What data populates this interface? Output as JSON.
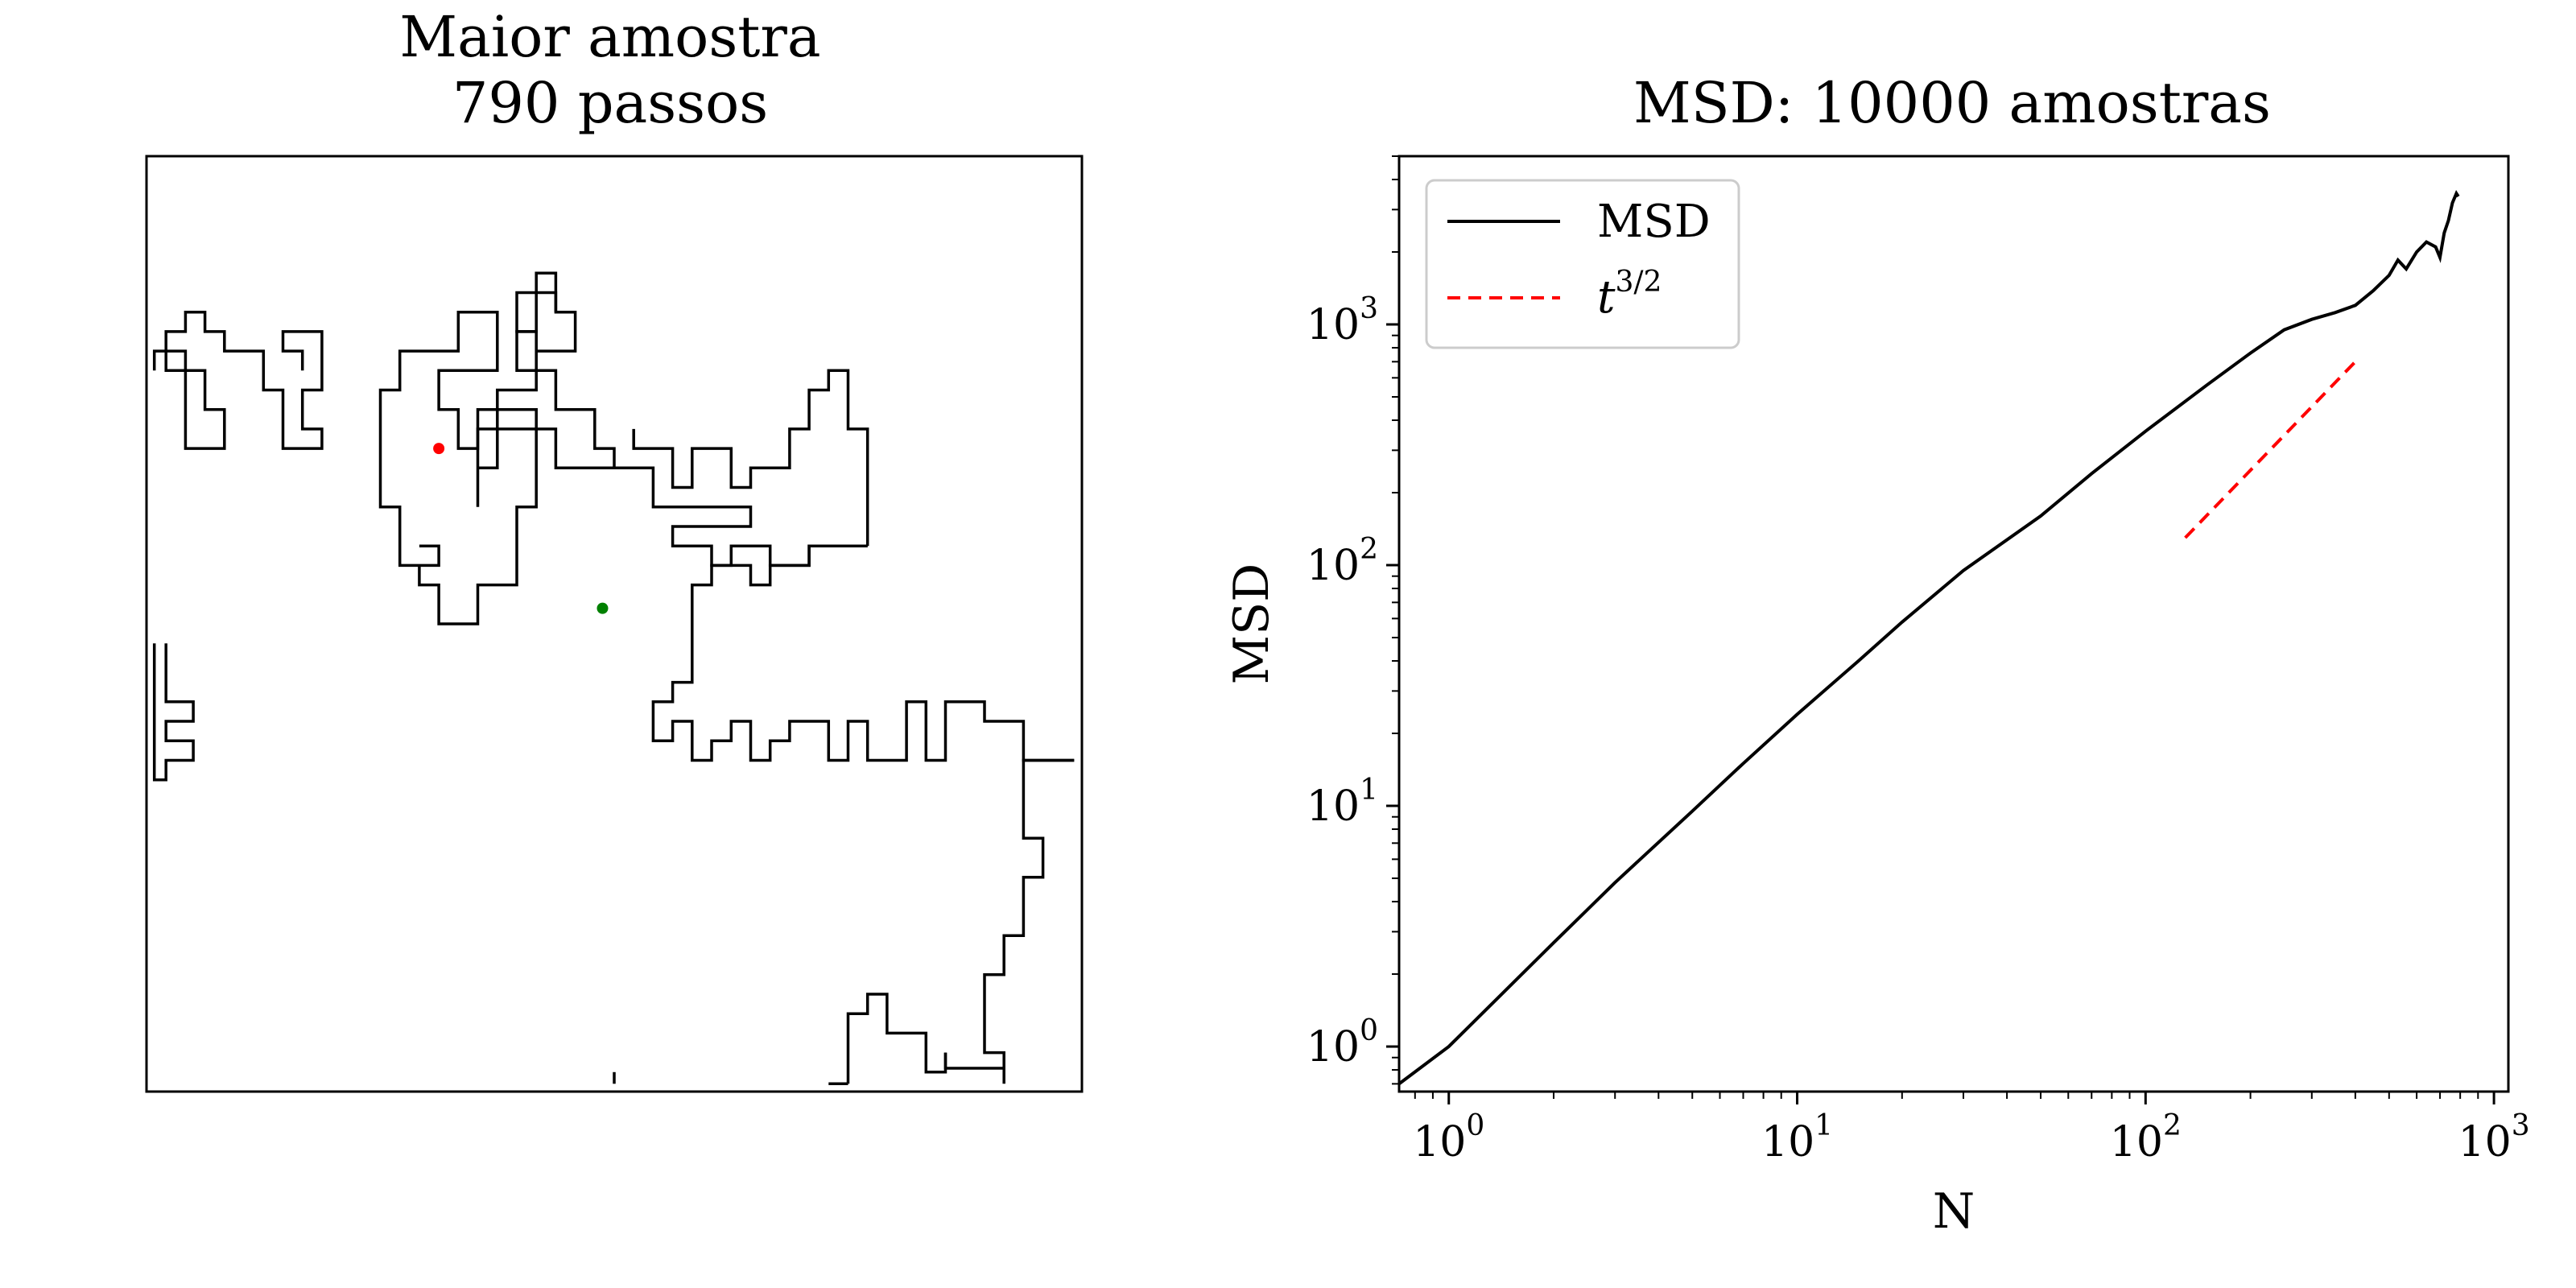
{
  "chart_data": [
    {
      "type": "line",
      "title_line1": "Maior amostra",
      "title_line2": "790 passos",
      "steps": 790,
      "xlim": [
        -12,
        12
      ],
      "ylim": [
        -12,
        12
      ],
      "axes_visible": false,
      "grid": false,
      "series": [
        {
          "color": "#000000",
          "segments": [
            [
              [
                5.5,
                -11.8
              ],
              [
                6,
                -11.8
              ]
            ],
            [
              [
                6,
                -11.8
              ],
              [
                6,
                -10
              ],
              [
                6.5,
                -10
              ],
              [
                6.5,
                -9.5
              ],
              [
                7,
                -9.5
              ],
              [
                7,
                -10.5
              ],
              [
                8,
                -10.5
              ],
              [
                8,
                -11.5
              ],
              [
                8.5,
                -11.5
              ],
              [
                8.5,
                -11
              ]
            ],
            [
              [
                8.5,
                -11
              ],
              [
                8.5,
                -11.4
              ],
              [
                10,
                -11.4
              ],
              [
                10,
                -11.8
              ],
              [
                10,
                -11
              ],
              [
                9.5,
                -11
              ],
              [
                9.5,
                -9
              ],
              [
                10,
                -9
              ],
              [
                10,
                -8
              ],
              [
                10.5,
                -8
              ],
              [
                10.5,
                -6.5
              ],
              [
                11,
                -6.5
              ],
              [
                11,
                -5.5
              ],
              [
                10.5,
                -5.5
              ],
              [
                10.5,
                -3.5
              ],
              [
                11.8,
                -3.5
              ]
            ],
            [
              [
                11.8,
                -3.5
              ],
              [
                10.5,
                -3.5
              ],
              [
                10.5,
                -2.5
              ],
              [
                9.5,
                -2.5
              ],
              [
                9.5,
                -2
              ],
              [
                8.5,
                -2
              ],
              [
                8.5,
                -3.5
              ],
              [
                8,
                -3.5
              ],
              [
                8,
                -2
              ],
              [
                7.5,
                -2
              ],
              [
                7.5,
                -3.5
              ],
              [
                6.5,
                -3.5
              ],
              [
                6.5,
                -2.5
              ],
              [
                6,
                -2.5
              ],
              [
                6,
                -3.5
              ],
              [
                5.5,
                -3.5
              ],
              [
                5.5,
                -2.5
              ],
              [
                4.5,
                -2.5
              ],
              [
                4.5,
                -3
              ],
              [
                4,
                -3
              ],
              [
                4,
                -3.5
              ],
              [
                3.5,
                -3.5
              ],
              [
                3.5,
                -2.5
              ],
              [
                3,
                -2.5
              ],
              [
                3,
                -3
              ],
              [
                2.5,
                -3
              ],
              [
                2.5,
                -3.5
              ],
              [
                2,
                -3.5
              ],
              [
                2,
                -2.5
              ],
              [
                1.5,
                -2.5
              ],
              [
                1.5,
                -3
              ],
              [
                1,
                -3
              ],
              [
                1,
                -2
              ],
              [
                1.5,
                -2
              ],
              [
                1.5,
                -1.5
              ],
              [
                2,
                -1.5
              ],
              [
                2,
                1
              ],
              [
                2.5,
                1
              ],
              [
                2.5,
                1.5
              ],
              [
                3.5,
                1.5
              ],
              [
                3.5,
                1
              ],
              [
                4,
                1
              ],
              [
                4,
                1.5
              ],
              [
                5,
                1.5
              ],
              [
                5,
                2
              ],
              [
                6.5,
                2
              ]
            ],
            [
              [
                6.5,
                2
              ],
              [
                5,
                2
              ],
              [
                5,
                1.5
              ],
              [
                4,
                1.5
              ],
              [
                4,
                2
              ],
              [
                3,
                2
              ],
              [
                3,
                1.5
              ],
              [
                2.5,
                1.5
              ],
              [
                2.5,
                2
              ],
              [
                1.5,
                2
              ],
              [
                1.5,
                2.5
              ],
              [
                3.5,
                2.5
              ],
              [
                3.5,
                3
              ],
              [
                1,
                3
              ],
              [
                1,
                4
              ],
              [
                -1.5,
                4
              ],
              [
                -1.5,
                5
              ],
              [
                -3,
                5
              ],
              [
                -3,
                6
              ],
              [
                -2,
                6
              ],
              [
                -2,
                7
              ],
              [
                -1,
                7
              ],
              [
                -1,
                8
              ],
              [
                -1.5,
                8
              ],
              [
                -1.5,
                8.5
              ],
              [
                -2.5,
                8.5
              ],
              [
                -2.5,
                7.5
              ],
              [
                -2,
                7.5
              ],
              [
                -2,
                6
              ],
              [
                -3,
                6
              ],
              [
                -3,
                4
              ],
              [
                -3.5,
                4
              ],
              [
                -3.5,
                3
              ],
              [
                -3.5,
                5
              ],
              [
                -2,
                5
              ]
            ],
            [
              [
                -5,
                1.5
              ],
              [
                -5,
                1
              ],
              [
                -4.5,
                1
              ],
              [
                -4.5,
                0
              ],
              [
                -3.5,
                0
              ],
              [
                -3.5,
                1
              ],
              [
                -2.5,
                1
              ],
              [
                -2.5,
                3
              ],
              [
                -2,
                3
              ],
              [
                -2,
                5.5
              ],
              [
                -3.5,
                5.5
              ],
              [
                -3.5,
                4.5
              ],
              [
                -4,
                4.5
              ],
              [
                -4,
                5.5
              ],
              [
                -4.5,
                5.5
              ],
              [
                -4.5,
                6.5
              ],
              [
                -3,
                6.5
              ],
              [
                -3,
                8
              ],
              [
                -4,
                8
              ],
              [
                -4,
                7
              ],
              [
                -5.5,
                7
              ],
              [
                -5.5,
                6
              ],
              [
                -6,
                6
              ],
              [
                -6,
                3
              ],
              [
                -5.5,
                3
              ],
              [
                -5.5,
                1.5
              ],
              [
                -4.5,
                1.5
              ],
              [
                -4.5,
                2
              ],
              [
                -5,
                2
              ]
            ],
            [
              [
                -1.5,
                8
              ],
              [
                -1.5,
                9
              ],
              [
                -2,
                9
              ],
              [
                -2,
                7.5
              ],
              [
                -2.5,
                7.5
              ],
              [
                -2.5,
                6.5
              ],
              [
                -1.5,
                6.5
              ],
              [
                -1.5,
                5.5
              ],
              [
                -0.5,
                5.5
              ],
              [
                -0.5,
                4.5
              ],
              [
                0,
                4.5
              ],
              [
                0,
                4
              ]
            ],
            [
              [
                -8,
                6.5
              ],
              [
                -8,
                7
              ],
              [
                -8.5,
                7
              ],
              [
                -8.5,
                7.5
              ],
              [
                -7.5,
                7.5
              ],
              [
                -7.5,
                6
              ],
              [
                -8,
                6
              ],
              [
                -8,
                5
              ],
              [
                -7.5,
                5
              ],
              [
                -7.5,
                4.5
              ],
              [
                -8.5,
                4.5
              ],
              [
                -8.5,
                6
              ],
              [
                -9,
                6
              ],
              [
                -9,
                7
              ],
              [
                -10,
                7
              ],
              [
                -10,
                7.5
              ],
              [
                -10.5,
                7.5
              ],
              [
                -10.5,
                8
              ],
              [
                -11,
                8
              ],
              [
                -11,
                7.5
              ],
              [
                -11.5,
                7.5
              ],
              [
                -11.5,
                6.5
              ],
              [
                -10.5,
                6.5
              ],
              [
                -10.5,
                5.5
              ],
              [
                -10,
                5.5
              ],
              [
                -10,
                4.5
              ],
              [
                -11,
                4.5
              ],
              [
                -11,
                7
              ],
              [
                -11.8,
                7
              ],
              [
                -11.8,
                6.5
              ]
            ],
            [
              [
                -11.8,
                -0.5
              ],
              [
                -11.8,
                -4
              ],
              [
                -11.5,
                -4
              ],
              [
                -11.5,
                -3.5
              ],
              [
                -10.8,
                -3.5
              ],
              [
                -10.8,
                -3
              ],
              [
                -11.5,
                -3
              ],
              [
                -11.5,
                -2.5
              ],
              [
                -10.8,
                -2.5
              ],
              [
                -10.8,
                -2
              ],
              [
                -11.5,
                -2
              ],
              [
                -11.5,
                -0.5
              ]
            ],
            [
              [
                0,
                -11.8
              ],
              [
                0,
                -11.5
              ]
            ],
            [
              [
                6.5,
                2
              ],
              [
                6.5,
                5
              ],
              [
                6,
                5
              ],
              [
                6,
                6.5
              ],
              [
                5.5,
                6.5
              ],
              [
                5.5,
                6
              ],
              [
                5,
                6
              ],
              [
                5,
                5
              ],
              [
                4.5,
                5
              ],
              [
                4.5,
                4
              ],
              [
                3.5,
                4
              ],
              [
                3.5,
                3.5
              ],
              [
                3,
                3.5
              ],
              [
                3,
                4.5
              ],
              [
                2,
                4.5
              ],
              [
                2,
                3.5
              ],
              [
                1.5,
                3.5
              ],
              [
                1.5,
                4.5
              ],
              [
                0.5,
                4.5
              ],
              [
                0.5,
                5
              ]
            ]
          ]
        }
      ],
      "markers": [
        {
          "color": "#ff0000",
          "x": -4.5,
          "y": 4.5
        },
        {
          "color": "#008000",
          "x": -0.3,
          "y": 0.4
        }
      ]
    },
    {
      "type": "line",
      "title": "MSD: 10000 amostras",
      "xlabel": "N",
      "ylabel": "MSD",
      "xscale": "log",
      "yscale": "log",
      "xlim": [
        0.72,
        1100
      ],
      "ylim": [
        0.65,
        5000
      ],
      "xticks": [
        {
          "value": 1,
          "base": "10",
          "exp": "0"
        },
        {
          "value": 10,
          "base": "10",
          "exp": "1"
        },
        {
          "value": 100,
          "base": "10",
          "exp": "2"
        },
        {
          "value": 1000,
          "base": "10",
          "exp": "3"
        }
      ],
      "yticks": [
        {
          "value": 1,
          "base": "10",
          "exp": "0"
        },
        {
          "value": 10,
          "base": "10",
          "exp": "1"
        },
        {
          "value": 100,
          "base": "10",
          "exp": "2"
        },
        {
          "value": 1000,
          "base": "10",
          "exp": "3"
        }
      ],
      "grid": false,
      "legend_position": "top-left",
      "series": [
        {
          "name": "MSD",
          "color": "#000000",
          "dash": "solid",
          "x": [
            0.72,
            1,
            2,
            3,
            5,
            7,
            10,
            15,
            20,
            30,
            50,
            70,
            100,
            150,
            200,
            250,
            300,
            350,
            400,
            450,
            500,
            530,
            560,
            600,
            640,
            680,
            700,
            720,
            740,
            760,
            780,
            790
          ],
          "y": [
            0.7,
            1.0,
            2.7,
            4.8,
            9.5,
            15,
            24,
            40,
            58,
            95,
            160,
            240,
            360,
            560,
            760,
            950,
            1050,
            1120,
            1200,
            1380,
            1600,
            1850,
            1700,
            2000,
            2200,
            2100,
            1900,
            2400,
            2700,
            3200,
            3500,
            3400
          ]
        },
        {
          "name": "t",
          "name_sup": "3/2",
          "color": "#ff0000",
          "dash": "dashed",
          "x": [
            130,
            400
          ],
          "y": [
            130,
            700
          ]
        }
      ]
    }
  ]
}
